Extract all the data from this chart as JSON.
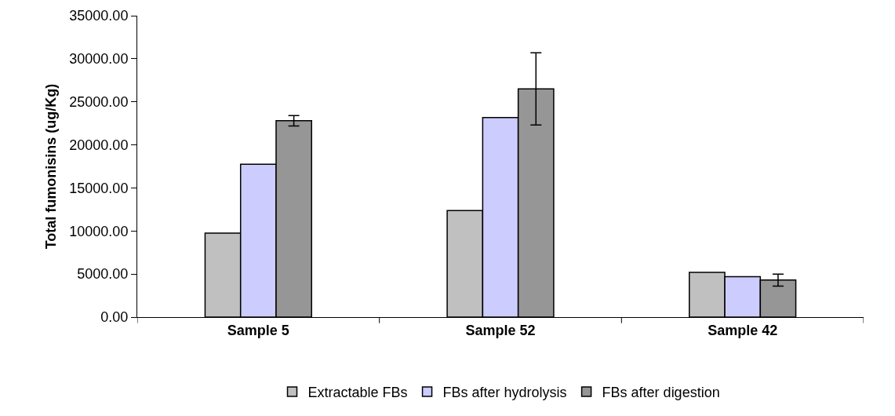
{
  "chart_data": {
    "type": "bar",
    "ylabel": "Total fumonisins (ug/Kg)",
    "categories": [
      "Sample 5",
      "Sample 52",
      "Sample 42"
    ],
    "series": [
      {
        "name": "Extractable FBs",
        "color": "#c0c0c0",
        "values": [
          9750,
          12370,
          5200
        ]
      },
      {
        "name": "FBs after hydrolysis",
        "color": "#ccccff",
        "values": [
          17750,
          23170,
          4700
        ]
      },
      {
        "name": "FBs after digestion",
        "color": "#969696",
        "values": [
          22800,
          26500,
          4300
        ],
        "errors": [
          600,
          4200,
          700
        ]
      }
    ],
    "ylim": [
      0,
      35000
    ],
    "yticks": [
      {
        "value": 0,
        "label": "0.00"
      },
      {
        "value": 5000,
        "label": "5000.00"
      },
      {
        "value": 10000,
        "label": "10000.00"
      },
      {
        "value": 15000,
        "label": "15000.00"
      },
      {
        "value": 20000,
        "label": "20000.00"
      },
      {
        "value": 25000,
        "label": "25000.00"
      },
      {
        "value": 30000,
        "label": "30000.00"
      },
      {
        "value": 35000,
        "label": "35000.00"
      }
    ],
    "grid": false,
    "legend": "bottom"
  }
}
